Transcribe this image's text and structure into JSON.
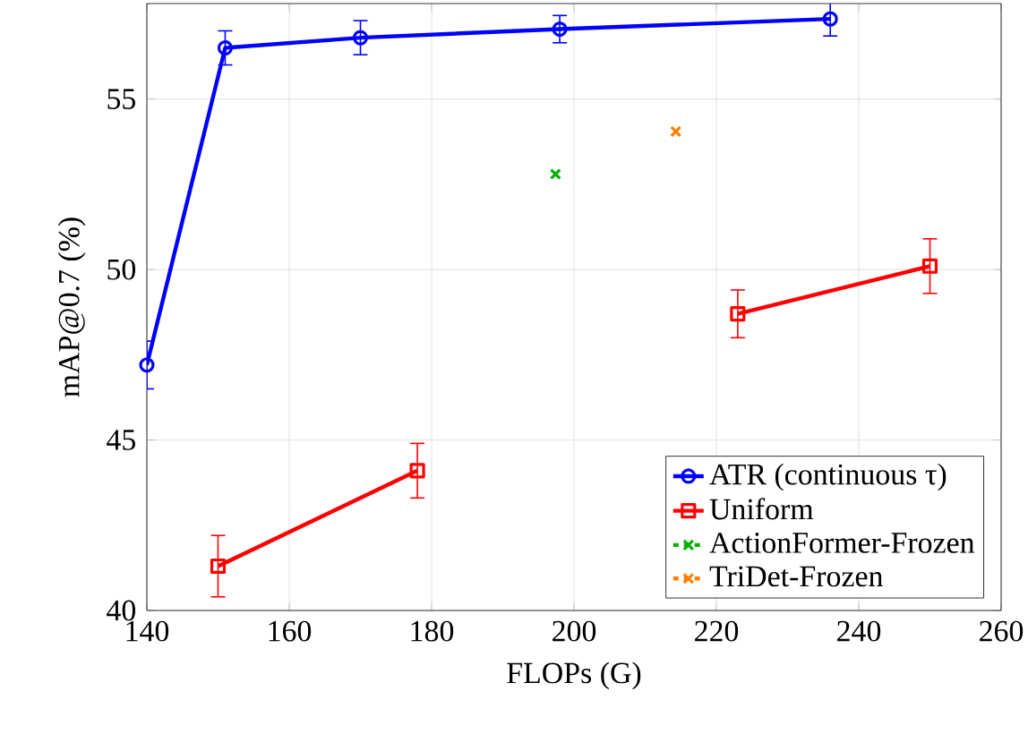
{
  "chart_data": {
    "type": "line",
    "xlabel": "FLOPs (G)",
    "ylabel": "mAP@0.7 (%)",
    "xlim": [
      140,
      260
    ],
    "ylim": [
      40,
      57.8
    ],
    "xticks": [
      140,
      160,
      180,
      200,
      220,
      240,
      260
    ],
    "yticks": [
      40,
      45,
      50,
      55
    ],
    "grid": true,
    "legend": "bottom right",
    "series": [
      {
        "name": "ATR (continuous τ)",
        "color": "#0000ff",
        "marker": "circle",
        "line_style": "solid",
        "x": [
          140,
          151,
          170,
          198,
          236
        ],
        "values": [
          47.2,
          56.5,
          56.8,
          57.05,
          57.35
        ],
        "errors": [
          0.7,
          0.5,
          0.5,
          0.4,
          0.5
        ]
      },
      {
        "name": "Uniform",
        "color": "#ff0000",
        "marker": "square",
        "line_style": "solid",
        "x": [
          150,
          178,
          200,
          223,
          250
        ],
        "values": [
          41.3,
          44.1,
          null,
          48.7,
          50.1
        ],
        "errors": [
          0.9,
          0.8,
          null,
          0.7,
          0.8
        ]
      },
      {
        "name": "ActionFormer-Frozen",
        "color": "#00b000",
        "marker": "cross",
        "line_style": "dashed",
        "x": [
          197.4
        ],
        "values": [
          52.8
        ]
      },
      {
        "name": "TriDet-Frozen",
        "color": "#ff8000",
        "marker": "cross",
        "line_style": "dashed",
        "x": [
          214.3
        ],
        "values": [
          54.05
        ]
      }
    ]
  }
}
